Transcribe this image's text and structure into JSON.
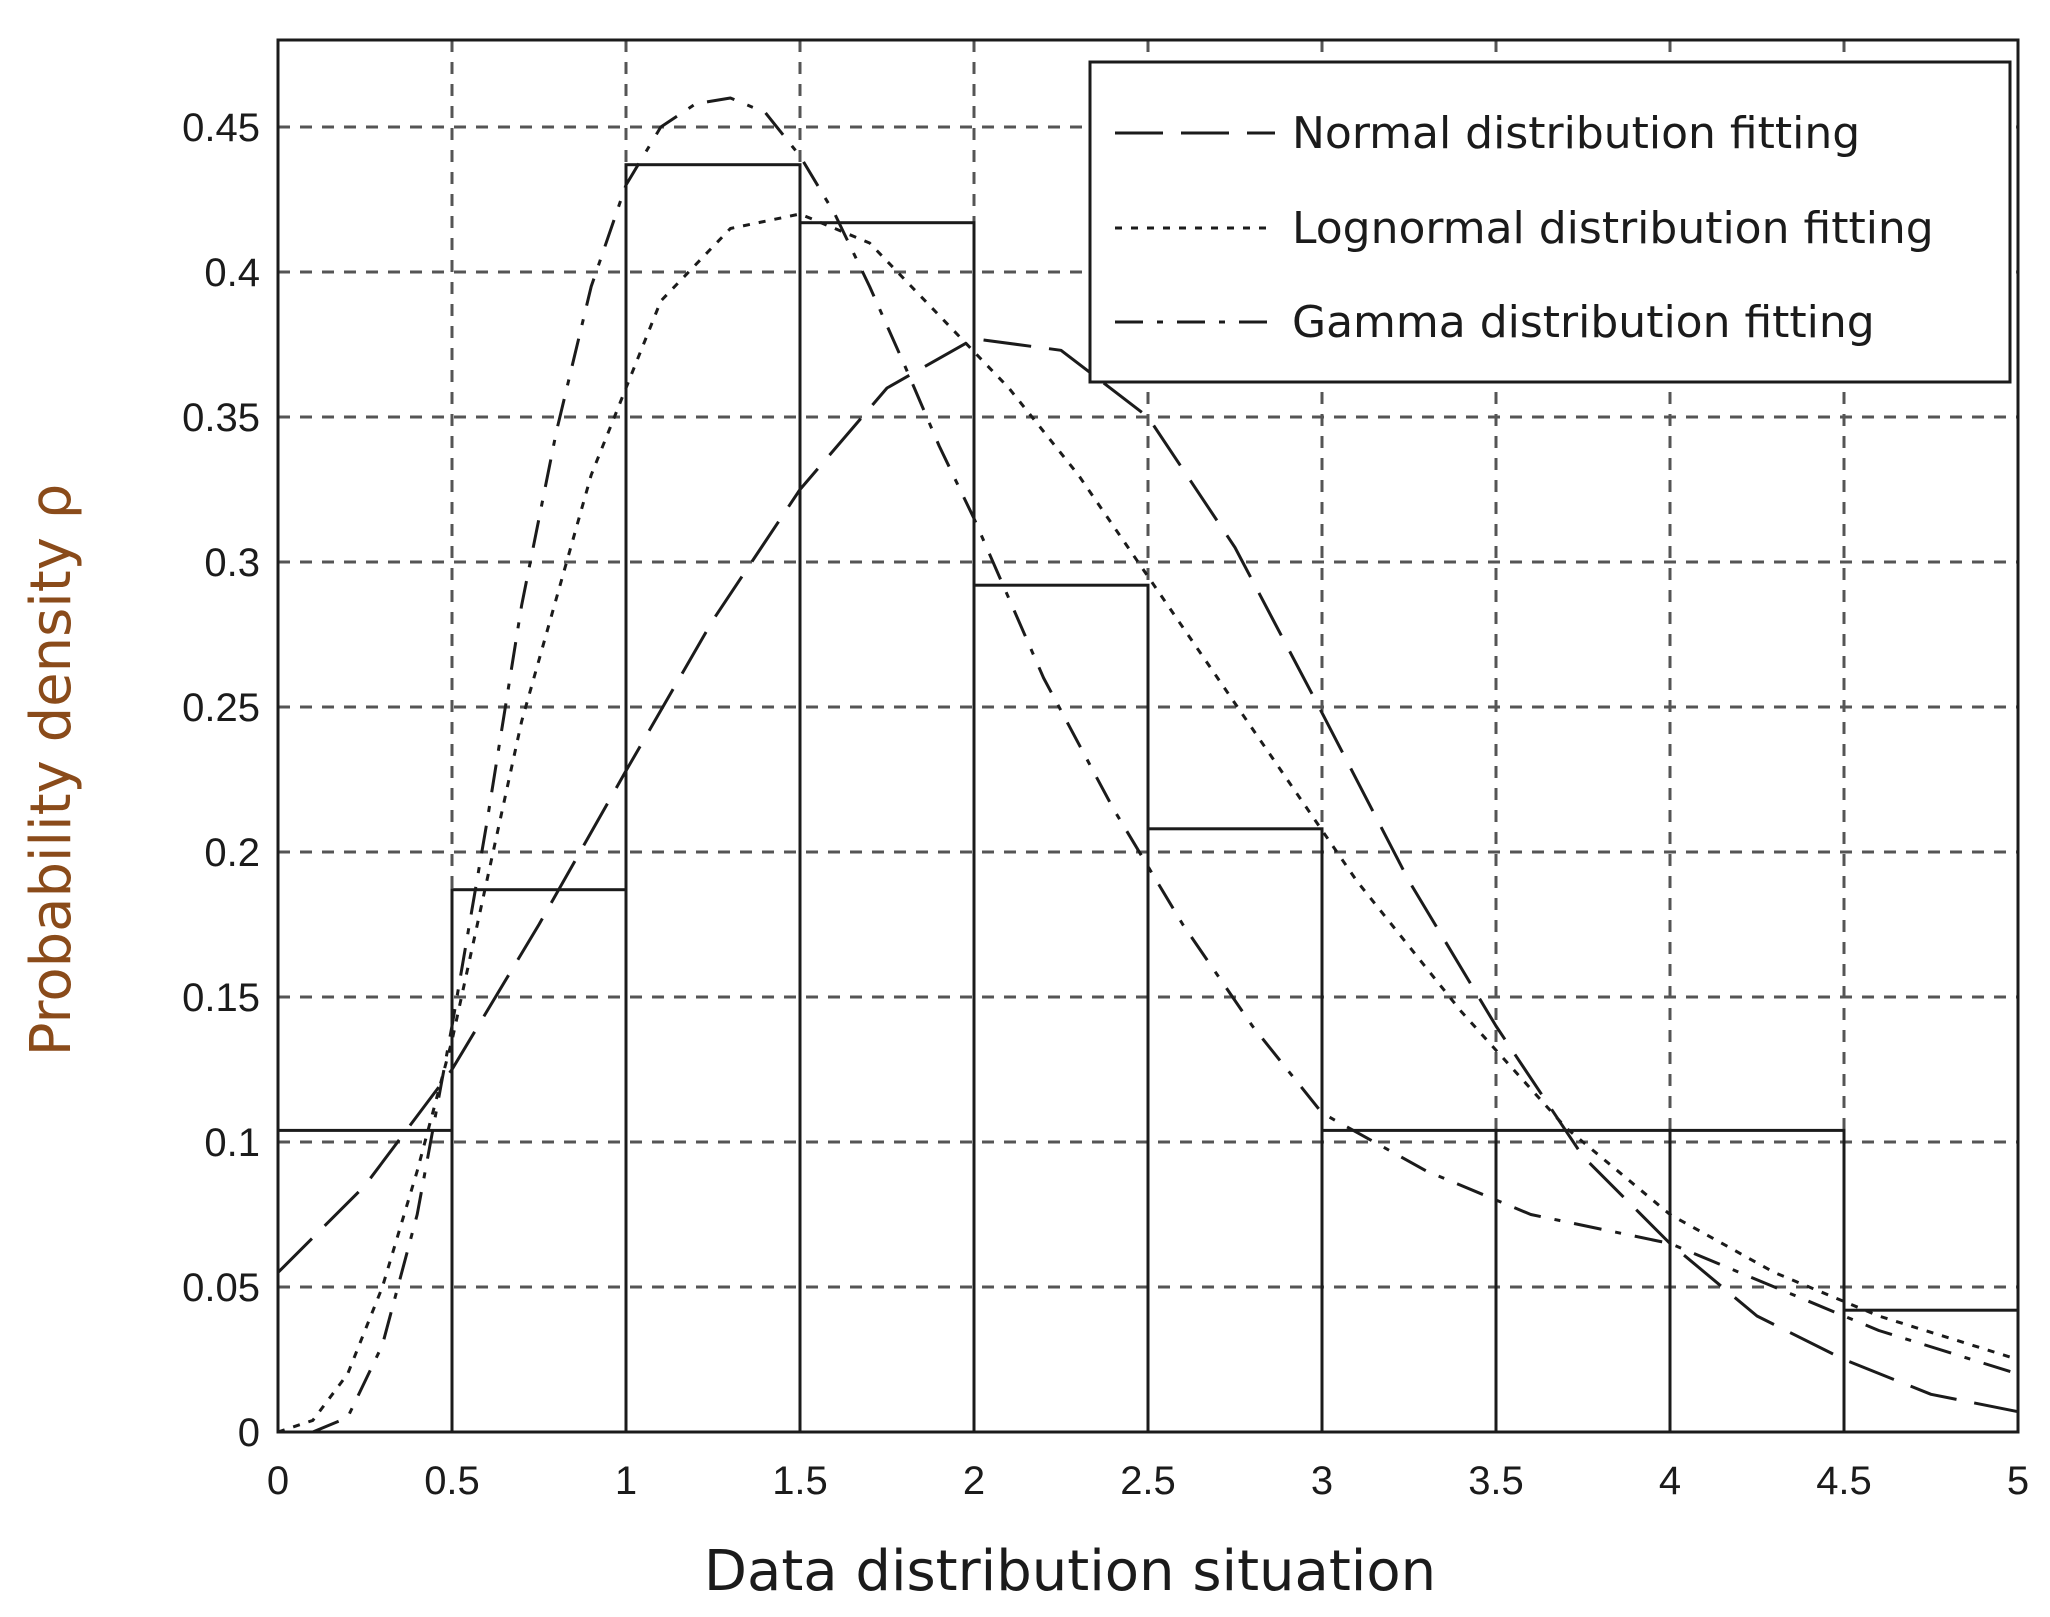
{
  "chart_data": {
    "type": "bar",
    "title": "",
    "xlabel": "Data distribution situation",
    "ylabel": "Probability density ρ",
    "xlim": [
      0,
      5
    ],
    "ylim": [
      0,
      0.48
    ],
    "x_ticks": [
      "0",
      "0.5",
      "1",
      "1.5",
      "2",
      "2.5",
      "3",
      "3.5",
      "4",
      "4.5",
      "5"
    ],
    "y_ticks": [
      "0",
      "0.05",
      "0.1",
      "0.15",
      "0.2",
      "0.25",
      "0.3",
      "0.35",
      "0.4",
      "0.45"
    ],
    "grid": true,
    "legend_position": "top-right",
    "histogram": {
      "bin_edges": [
        0,
        0.5,
        1,
        1.5,
        2,
        2.5,
        3,
        3.5,
        4,
        4.5,
        5
      ],
      "values": [
        0.104,
        0.187,
        0.437,
        0.417,
        0.292,
        0.208,
        0.104,
        0.104,
        0.104,
        0.042
      ]
    },
    "series": [
      {
        "name": "Normal distribution fitting",
        "style": "long-dash",
        "x": [
          0,
          0.25,
          0.5,
          0.75,
          1,
          1.25,
          1.5,
          1.75,
          2,
          2.25,
          2.5,
          2.75,
          3,
          3.25,
          3.5,
          3.75,
          4,
          4.25,
          4.5,
          4.75,
          5
        ],
        "y": [
          0.055,
          0.085,
          0.125,
          0.175,
          0.228,
          0.28,
          0.325,
          0.36,
          0.377,
          0.373,
          0.35,
          0.305,
          0.248,
          0.19,
          0.14,
          0.095,
          0.065,
          0.04,
          0.025,
          0.013,
          0.007
        ]
      },
      {
        "name": "Lognormal distribution fitting",
        "style": "short-dot",
        "x": [
          0,
          0.1,
          0.2,
          0.3,
          0.4,
          0.5,
          0.7,
          0.9,
          1.1,
          1.3,
          1.5,
          1.7,
          1.9,
          2.1,
          2.3,
          2.5,
          2.7,
          2.9,
          3.1,
          3.4,
          3.7,
          4,
          4.3,
          4.6,
          5
        ],
        "y": [
          0,
          0.004,
          0.02,
          0.05,
          0.09,
          0.135,
          0.245,
          0.33,
          0.39,
          0.415,
          0.42,
          0.41,
          0.385,
          0.36,
          0.33,
          0.295,
          0.26,
          0.225,
          0.19,
          0.145,
          0.105,
          0.075,
          0.055,
          0.04,
          0.025
        ]
      },
      {
        "name": "Gamma distribution fitting",
        "style": "dash-dot",
        "x": [
          0.1,
          0.2,
          0.3,
          0.4,
          0.5,
          0.6,
          0.7,
          0.8,
          0.9,
          1,
          1.1,
          1.2,
          1.3,
          1.4,
          1.5,
          1.6,
          1.7,
          1.8,
          1.9,
          2,
          2.2,
          2.4,
          2.6,
          2.8,
          3,
          3.3,
          3.6,
          4,
          4.3,
          4.6,
          5
        ],
        "y": [
          0.0,
          0.005,
          0.03,
          0.075,
          0.14,
          0.21,
          0.285,
          0.345,
          0.395,
          0.43,
          0.45,
          0.458,
          0.46,
          0.455,
          0.44,
          0.42,
          0.395,
          0.368,
          0.34,
          0.315,
          0.26,
          0.215,
          0.175,
          0.14,
          0.11,
          0.09,
          0.075,
          0.065,
          0.05,
          0.035,
          0.02
        ]
      }
    ]
  }
}
